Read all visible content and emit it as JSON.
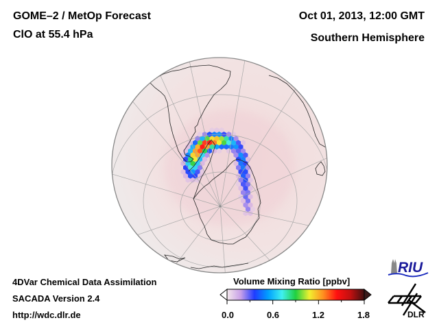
{
  "header": {
    "product": "GOME–2 / MetOp Forecast",
    "species_level": "ClO at 55.4 hPa",
    "datetime": "Oct 01, 2013, 12:00 GMT",
    "region": "Southern Hemisphere"
  },
  "footer": {
    "method": "4DVar Chemical Data Assimilation",
    "version": "SACADA Version 2.4",
    "url": "http://wdc.dlr.de"
  },
  "colorbar": {
    "title": "Volume Mixing Ratio [ppbv]",
    "ticks": [
      "0.0",
      "0.6",
      "1.2",
      "1.8"
    ],
    "range": [
      0.0,
      1.8
    ],
    "colors": [
      "#f4e8ec",
      "#c8a0e8",
      "#1e3cff",
      "#00a0ff",
      "#40f0f0",
      "#20d040",
      "#f0f030",
      "#ff9020",
      "#ff1010",
      "#c01010",
      "#401010"
    ]
  },
  "map": {
    "projection": "orthographic, south polar",
    "background_color": "#f0e4e4",
    "plume_peak_ppbv": 1.5
  },
  "logos": {
    "riu": "RIU",
    "dlr": "DLR"
  }
}
